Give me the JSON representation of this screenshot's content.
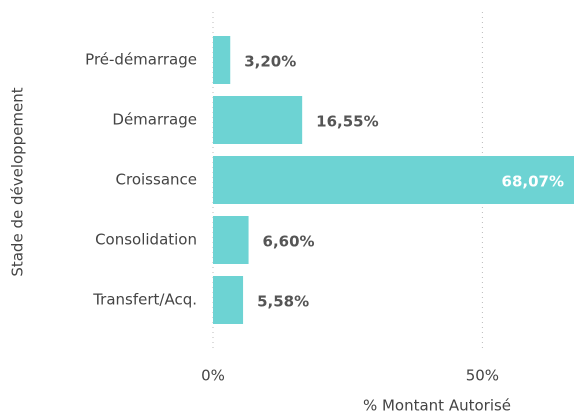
{
  "chart_data": {
    "type": "bar",
    "orientation": "horizontal",
    "categories": [
      "Pré-démarrage",
      "Démarrage",
      "Croissance",
      "Consolidation",
      "Transfert/Acq."
    ],
    "values": [
      3.2,
      16.55,
      68.07,
      6.6,
      5.58
    ],
    "value_labels": [
      "3,20%",
      "16,55%",
      "68,07%",
      "6,60%",
      "5,58%"
    ],
    "color": "#6dd3d3",
    "xlim": [
      0,
      67
    ],
    "xticks": [
      {
        "value": 0,
        "label": "0%"
      },
      {
        "value": 50,
        "label": "50%"
      }
    ],
    "grid": true,
    "xlabel": "% Montant Autorisé",
    "ylabel": "Stade de développement"
  }
}
